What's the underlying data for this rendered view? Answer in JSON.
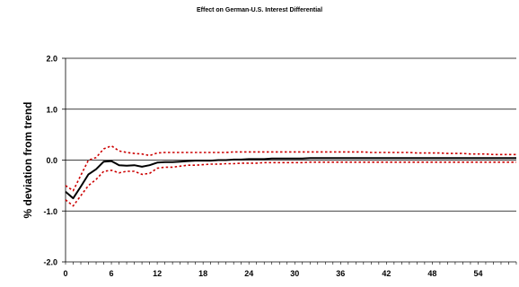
{
  "chart_data": {
    "type": "line",
    "title": "Effect on German-U.S. Interest Differential",
    "xlabel": "",
    "ylabel": "% deviation from trend",
    "xlim": [
      0,
      59
    ],
    "ylim": [
      -2.0,
      2.0
    ],
    "x_ticks": [
      "0",
      "6",
      "12",
      "18",
      "24",
      "30",
      "36",
      "42",
      "48",
      "54"
    ],
    "y_ticks": [
      "2.0",
      "1.0",
      "0.0",
      "-1.0",
      "-2.0"
    ],
    "grid": "horizontal",
    "legend": "none",
    "colors": {
      "main": "#000000",
      "bands": "#cc0000"
    },
    "series": [
      {
        "role": "response",
        "style": "solid",
        "values": [
          -0.62,
          -0.75,
          -0.52,
          -0.28,
          -0.18,
          -0.03,
          -0.02,
          -0.1,
          -0.11,
          -0.1,
          -0.13,
          -0.1,
          -0.05,
          -0.04,
          -0.04,
          -0.03,
          -0.02,
          -0.01,
          -0.01,
          -0.01,
          0.0,
          0.0,
          0.01,
          0.01,
          0.02,
          0.02,
          0.02,
          0.03,
          0.03,
          0.03,
          0.03,
          0.03,
          0.04,
          0.04,
          0.04,
          0.04,
          0.04,
          0.04,
          0.04,
          0.04,
          0.04,
          0.04,
          0.04,
          0.04,
          0.04,
          0.04,
          0.04,
          0.04,
          0.04,
          0.04,
          0.04,
          0.04,
          0.04,
          0.04,
          0.04,
          0.04,
          0.04,
          0.04,
          0.04,
          0.04
        ]
      },
      {
        "role": "upper-band",
        "style": "dotted",
        "values": [
          -0.5,
          -0.6,
          -0.3,
          0.0,
          0.05,
          0.22,
          0.28,
          0.18,
          0.15,
          0.13,
          0.12,
          0.09,
          0.14,
          0.15,
          0.15,
          0.15,
          0.15,
          0.15,
          0.15,
          0.15,
          0.15,
          0.15,
          0.16,
          0.16,
          0.16,
          0.16,
          0.16,
          0.16,
          0.16,
          0.16,
          0.16,
          0.16,
          0.16,
          0.16,
          0.16,
          0.16,
          0.16,
          0.16,
          0.16,
          0.16,
          0.15,
          0.15,
          0.15,
          0.15,
          0.15,
          0.15,
          0.14,
          0.14,
          0.14,
          0.14,
          0.13,
          0.13,
          0.13,
          0.12,
          0.12,
          0.12,
          0.11,
          0.11,
          0.11,
          0.11
        ]
      },
      {
        "role": "lower-band",
        "style": "dotted",
        "values": [
          -0.78,
          -0.9,
          -0.7,
          -0.5,
          -0.38,
          -0.22,
          -0.2,
          -0.25,
          -0.22,
          -0.22,
          -0.28,
          -0.26,
          -0.16,
          -0.14,
          -0.14,
          -0.12,
          -0.1,
          -0.1,
          -0.09,
          -0.08,
          -0.08,
          -0.07,
          -0.07,
          -0.06,
          -0.06,
          -0.06,
          -0.05,
          -0.05,
          -0.05,
          -0.05,
          -0.05,
          -0.05,
          -0.04,
          -0.04,
          -0.04,
          -0.04,
          -0.04,
          -0.04,
          -0.04,
          -0.04,
          -0.04,
          -0.04,
          -0.04,
          -0.04,
          -0.04,
          -0.04,
          -0.04,
          -0.04,
          -0.04,
          -0.04,
          -0.04,
          -0.04,
          -0.04,
          -0.04,
          -0.04,
          -0.04,
          -0.04,
          -0.04,
          -0.04,
          -0.04
        ]
      }
    ]
  }
}
